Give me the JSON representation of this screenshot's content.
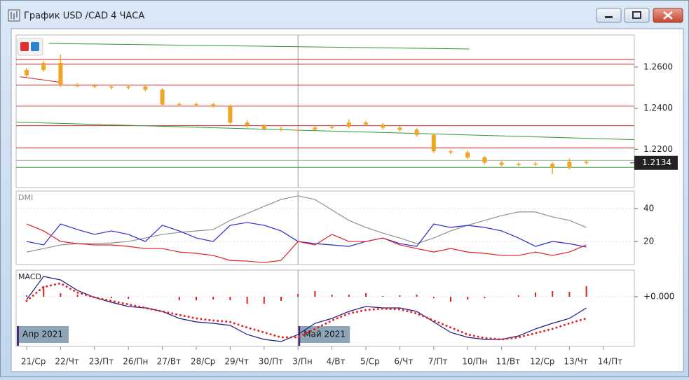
{
  "window": {
    "title": "График USD /CAD  4 ЧАСА"
  },
  "chart_data": [
    {
      "type": "candlestick",
      "x_labels": [
        "21/Ср",
        "22/Чт",
        "23/Пт",
        "26/Пн",
        "27/Вт",
        "28/Ср",
        "29/Чт",
        "30/Пт",
        "3/Пн",
        "4/Вт",
        "5/Ср",
        "6/Чт",
        "7/Пт",
        "10/Пн",
        "11/Вт",
        "12/Ср",
        "13/Чт",
        "14/Пт"
      ],
      "periods": [
        "Апр 2021",
        "Май 2021"
      ],
      "open": [
        1.256,
        1.2586,
        1.262,
        1.2512,
        1.251,
        1.2505,
        1.25,
        1.2505,
        1.249,
        1.2417,
        1.242,
        1.2418,
        1.241,
        1.233,
        1.2315,
        1.23,
        1.2295,
        1.2295,
        1.2305,
        1.231,
        1.233,
        1.232,
        1.2305,
        1.2295,
        1.227,
        1.219,
        1.2185,
        1.216,
        1.2135,
        1.2125,
        1.2128,
        1.213,
        1.211,
        1.214
      ],
      "high": [
        1.2596,
        1.263,
        1.2661,
        1.2522,
        1.2518,
        1.2513,
        1.2514,
        1.2512,
        1.2498,
        1.2428,
        1.2428,
        1.2426,
        1.2418,
        1.234,
        1.2323,
        1.2308,
        1.2303,
        1.2313,
        1.2318,
        1.2345,
        1.2338,
        1.2328,
        1.2313,
        1.2303,
        1.2278,
        1.2198,
        1.2193,
        1.2168,
        1.2143,
        1.2136,
        1.2138,
        1.2138,
        1.2155,
        1.2148
      ],
      "low": [
        1.2552,
        1.2578,
        1.2504,
        1.2502,
        1.2497,
        1.2492,
        1.2492,
        1.2482,
        1.2409,
        1.2409,
        1.241,
        1.2402,
        1.2322,
        1.2307,
        1.2292,
        1.2287,
        1.2287,
        1.2287,
        1.2297,
        1.2302,
        1.2312,
        1.2297,
        1.2287,
        1.2262,
        1.2182,
        1.2177,
        1.2152,
        1.2127,
        1.2117,
        1.2117,
        1.212,
        1.208,
        1.2102,
        1.2126
      ],
      "close": [
        1.2586,
        1.262,
        1.2512,
        1.251,
        1.2505,
        1.25,
        1.2505,
        1.249,
        1.2417,
        1.242,
        1.2418,
        1.241,
        1.233,
        1.2315,
        1.23,
        1.2295,
        1.2295,
        1.2305,
        1.231,
        1.233,
        1.232,
        1.2305,
        1.2295,
        1.227,
        1.219,
        1.2185,
        1.216,
        1.2135,
        1.2125,
        1.2128,
        1.213,
        1.211,
        1.214,
        1.2134
      ],
      "color": "#f0a526",
      "ylim": [
        1.2014,
        1.2756
      ],
      "yticks": [
        {
          "value": 1.22,
          "label": "1.2200"
        },
        {
          "value": 1.24,
          "label": "1.2400"
        },
        {
          "value": 1.26,
          "label": "1.2600"
        }
      ],
      "last_price": {
        "value": 1.2134,
        "label": "1.2134"
      },
      "hlines": [
        {
          "value": 1.2637,
          "color": "#d22020"
        },
        {
          "value": 1.2614,
          "color": "#d22020"
        },
        {
          "value": 1.2512,
          "color": "#d22020"
        },
        {
          "value": 1.241,
          "color": "#d22020"
        },
        {
          "value": 1.2315,
          "color": "#d22020"
        },
        {
          "value": 1.2207,
          "color": "#d22020"
        },
        {
          "value": 1.2146,
          "color": "#9aa89a"
        },
        {
          "value": 1.2112,
          "color": "#2e9a2e"
        }
      ],
      "trendlines": [
        {
          "x": [
            1.3,
            26.1
          ],
          "y": [
            1.2715,
            1.2688
          ],
          "color": "#2e9a2e"
        },
        {
          "x": [
            -0.6,
            36.2
          ],
          "y": [
            1.2332,
            1.2247
          ],
          "color": "#2e9a2e"
        },
        {
          "x": [
            -0.4,
            2
          ],
          "y": [
            1.2553,
            1.2526
          ],
          "color": "#d22020"
        }
      ]
    },
    {
      "type": "line",
      "title": "DMI",
      "ylim": [
        6,
        50.6
      ],
      "yticks": [
        20,
        40
      ],
      "series": [
        {
          "color": "#909090",
          "values": [
            13.6,
            15.7,
            17.9,
            18.7,
            18.7,
            19.1,
            20,
            22.1,
            24.3,
            25.5,
            26.4,
            27.2,
            32.8,
            37,
            41.3,
            45.5,
            47.7,
            45.5,
            39.1,
            32.8,
            28.5,
            25.1,
            22.1,
            18.7,
            22.1,
            26.4,
            29.8,
            32.8,
            35.7,
            37.9,
            37.9,
            34.9,
            32.8,
            28.5
          ]
        },
        {
          "color": "#2a2ad0",
          "values": [
            20,
            17.9,
            30.6,
            27.2,
            24.3,
            26.4,
            24.3,
            20,
            29.8,
            26.4,
            22.1,
            20,
            29.8,
            31.5,
            29.8,
            26.4,
            20,
            18.7,
            17.9,
            17,
            20,
            22.1,
            18.7,
            17,
            30.6,
            28.5,
            29.8,
            28.5,
            26.4,
            22.1,
            17,
            20,
            18.7,
            16.6
          ]
        },
        {
          "color": "#e02020",
          "values": [
            30.6,
            26.4,
            20,
            18.7,
            17.9,
            17.9,
            17,
            15.7,
            15.7,
            13.6,
            12.8,
            11.5,
            8.5,
            8.1,
            7.2,
            8.5,
            20,
            17.9,
            24.3,
            20,
            20,
            22.1,
            17.9,
            15.7,
            13.6,
            15.7,
            13.6,
            12.8,
            11.5,
            11.5,
            13.6,
            11.5,
            13.6,
            17.9
          ]
        }
      ]
    },
    {
      "type": "macd",
      "title": "MACD",
      "ylim": [
        -0.00284,
        0.00152
      ],
      "yticks": [
        {
          "value": 0,
          "label": "+0.000"
        }
      ],
      "series": [
        {
          "color": "#e02020",
          "style": "bars",
          "values": [
            8e-05,
            0.0006,
            0.0002,
            0.00012,
            0,
            -8e-05,
            -0.00012,
            0,
            0,
            -0.0002,
            -0.0002,
            -0.00016,
            -0.0002,
            -0.0004,
            -0.0004,
            -0.00024,
            0.00016,
            0.00032,
            0.00012,
            0.00012,
            0.0002,
            4e-05,
            8e-05,
            0.00012,
            -8e-05,
            -0.00028,
            -0.00016,
            -8e-05,
            0,
            8e-05,
            0.00024,
            0.00032,
            0.00028,
            0.0006
          ]
        },
        {
          "color": "#1a1a80",
          "style": "line",
          "values": [
            -0.00016,
            0.00116,
            0.00096,
            0.00036,
            -4e-05,
            -0.00032,
            -0.00056,
            -0.00064,
            -0.00084,
            -0.00124,
            -0.00144,
            -0.00152,
            -0.00164,
            -0.00216,
            -0.00244,
            -0.00256,
            -0.00216,
            -0.00152,
            -0.00124,
            -0.00084,
            -0.00056,
            -0.00064,
            -0.00064,
            -0.00084,
            -0.00144,
            -0.00204,
            -0.00232,
            -0.00244,
            -0.00244,
            -0.00224,
            -0.00184,
            -0.00152,
            -0.00124,
            -0.00064
          ]
        },
        {
          "color": "#e82020",
          "style": "dotted",
          "values": [
            -0.00024,
            0.00056,
            0.00076,
            0.00024,
            -4e-05,
            -0.00024,
            -0.00044,
            -0.00064,
            -0.00084,
            -0.00104,
            -0.00124,
            -0.00136,
            -0.00144,
            -0.00176,
            -0.00204,
            -0.00232,
            -0.00232,
            -0.00184,
            -0.00136,
            -0.00096,
            -0.00076,
            -0.00068,
            -0.00072,
            -0.00096,
            -0.00136,
            -0.00176,
            -0.00216,
            -0.00236,
            -0.00244,
            -0.00232,
            -0.00208,
            -0.00184,
            -0.00152,
            -0.00124
          ]
        }
      ]
    }
  ]
}
